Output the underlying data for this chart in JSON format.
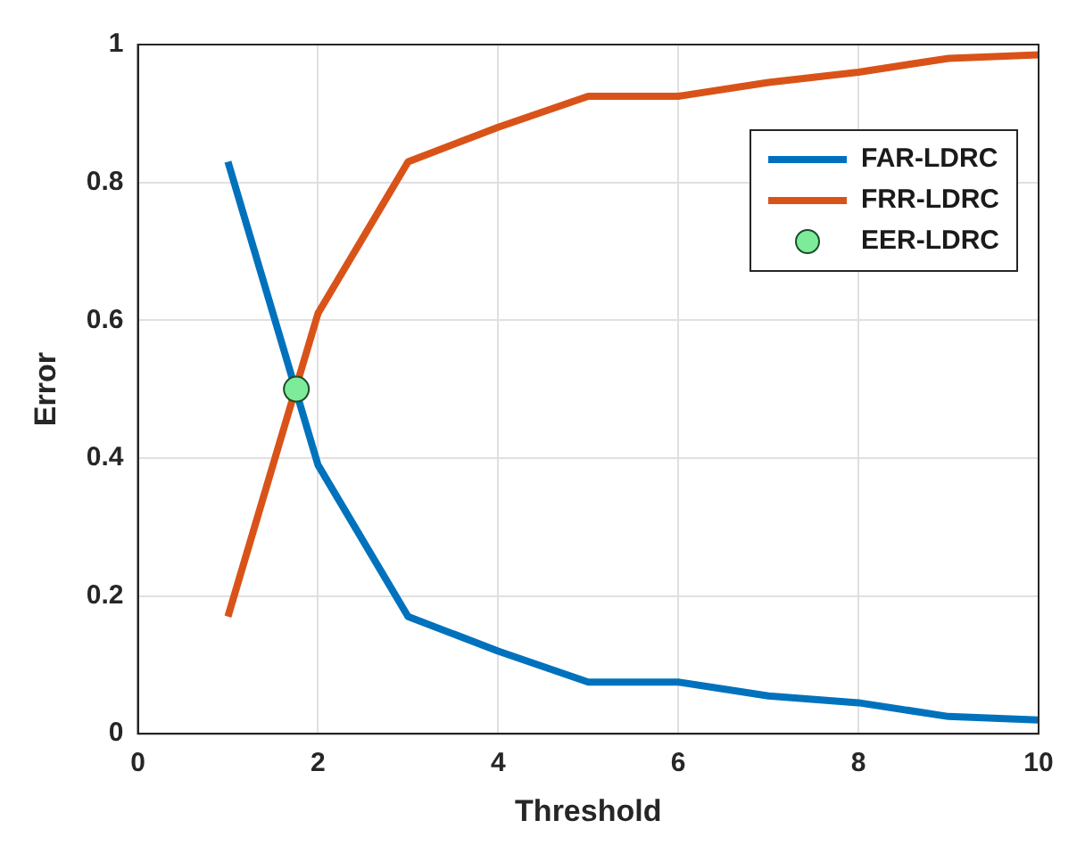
{
  "chart_data": {
    "type": "line",
    "xlabel": "Threshold",
    "ylabel": "Error",
    "xlim": [
      0,
      10
    ],
    "xticks": [
      0,
      2,
      4,
      6,
      8,
      10
    ],
    "ylim": [
      0,
      1
    ],
    "yticks": [
      0,
      0.2,
      0.4,
      0.6,
      0.8,
      1
    ],
    "grid": true,
    "legend": "top right",
    "marker": "none",
    "series": [
      {
        "name": "FAR-LDRC",
        "color": "#0072bd",
        "x": [
          1,
          2,
          3,
          4,
          5,
          6,
          7,
          8,
          9,
          10
        ],
        "values": [
          0.83,
          0.39,
          0.17,
          0.12,
          0.075,
          0.075,
          0.055,
          0.045,
          0.025,
          0.02
        ]
      },
      {
        "name": "FRR-LDRC",
        "color": "#d95319",
        "x": [
          1,
          2,
          3,
          4,
          5,
          6,
          7,
          8,
          9,
          10
        ],
        "values": [
          0.17,
          0.61,
          0.83,
          0.88,
          0.925,
          0.925,
          0.945,
          0.96,
          0.98,
          0.985
        ]
      },
      {
        "name": "EER-LDRC",
        "type": "scatter",
        "marker": "circle",
        "color": "#7eeb9a",
        "x": [
          1.76
        ],
        "values": [
          0.5
        ]
      }
    ]
  }
}
